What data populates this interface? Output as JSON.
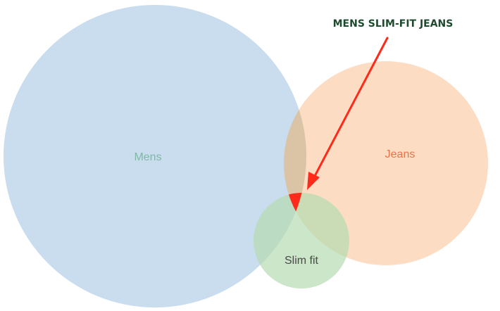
{
  "diagram": {
    "type": "venn",
    "sets": [
      {
        "id": "mens",
        "label": "Mens",
        "fill": "#b7d1e9",
        "label_color": "#7fb8a4"
      },
      {
        "id": "jeans",
        "label": "Jeans",
        "fill": "#fbd1b0",
        "label_color": "#e8734a"
      },
      {
        "id": "slim_fit",
        "label": "Slim fit",
        "fill": "#b5dcb0",
        "label_color": "#4a4a4a"
      }
    ],
    "intersection_highlight_color": "#ff2a1a",
    "callout": {
      "text": "MENS SLIM-FIT JEANS",
      "color": "#1e4a2e",
      "arrow_color": "#ff2a1a"
    }
  }
}
